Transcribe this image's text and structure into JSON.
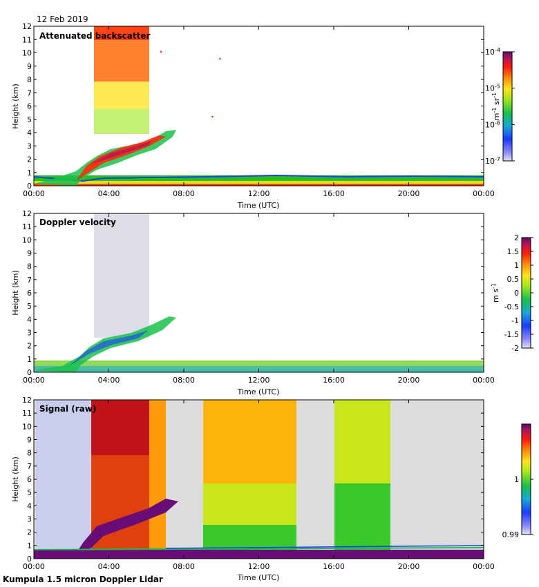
{
  "date": "12 Feb 2019",
  "instrument": "Kumpula 1.5 micron Doppler Lidar",
  "chart_data": [
    {
      "type": "heatmap",
      "title": "Attenuated backscatter",
      "xlabel": "Time (UTC)",
      "ylabel": "Height (km)",
      "x_ticks": [
        "00:00",
        "04:00",
        "08:00",
        "12:00",
        "16:00",
        "20:00",
        "00:00"
      ],
      "y_ticks": [
        "0",
        "1",
        "2",
        "3",
        "4",
        "5",
        "6",
        "7",
        "8",
        "9",
        "10",
        "11",
        "12"
      ],
      "ylim": [
        0,
        12
      ],
      "xlim_hours": [
        0,
        24
      ],
      "colorbar": {
        "label": "m-1 sr-1",
        "ticks": [
          {
            "value": -4,
            "base": "10",
            "exp": "-4"
          },
          {
            "value": -5,
            "base": "10",
            "exp": "-5"
          },
          {
            "value": -6,
            "base": "10",
            "exp": "-6"
          },
          {
            "value": -7,
            "base": "10",
            "exp": "-7"
          }
        ],
        "range": [
          -7,
          -4
        ]
      }
    },
    {
      "type": "heatmap",
      "title": "Doppler velocity",
      "xlabel": "Time (UTC)",
      "ylabel": "Height (km)",
      "x_ticks": [
        "00:00",
        "04:00",
        "08:00",
        "12:00",
        "16:00",
        "20:00",
        "00:00"
      ],
      "y_ticks": [
        "0",
        "1",
        "2",
        "3",
        "4",
        "5",
        "6",
        "7",
        "8",
        "9",
        "10",
        "11",
        "12"
      ],
      "ylim": [
        0,
        12
      ],
      "xlim_hours": [
        0,
        24
      ],
      "colorbar": {
        "label": "m s-1",
        "ticks": [
          "2",
          "1.5",
          "1",
          "0.5",
          "0",
          "-0.5",
          "-1",
          "-1.5",
          "-2"
        ],
        "range": [
          -2,
          2
        ]
      }
    },
    {
      "type": "heatmap",
      "title": "Signal (raw)",
      "xlabel": "Time (UTC)",
      "ylabel": "Height (km)",
      "x_ticks": [
        "00:00",
        "04:00",
        "08:00",
        "12:00",
        "16:00",
        "20:00",
        "00:00"
      ],
      "y_ticks": [
        "0",
        "1",
        "2",
        "3",
        "4",
        "5",
        "6",
        "7",
        "8",
        "9",
        "10",
        "11",
        "12"
      ],
      "ylim": [
        0,
        12
      ],
      "xlim_hours": [
        0,
        24
      ],
      "colorbar": {
        "label": "",
        "ticks": [
          "1",
          "0.99"
        ],
        "range": [
          0.99,
          1.01
        ]
      }
    }
  ]
}
